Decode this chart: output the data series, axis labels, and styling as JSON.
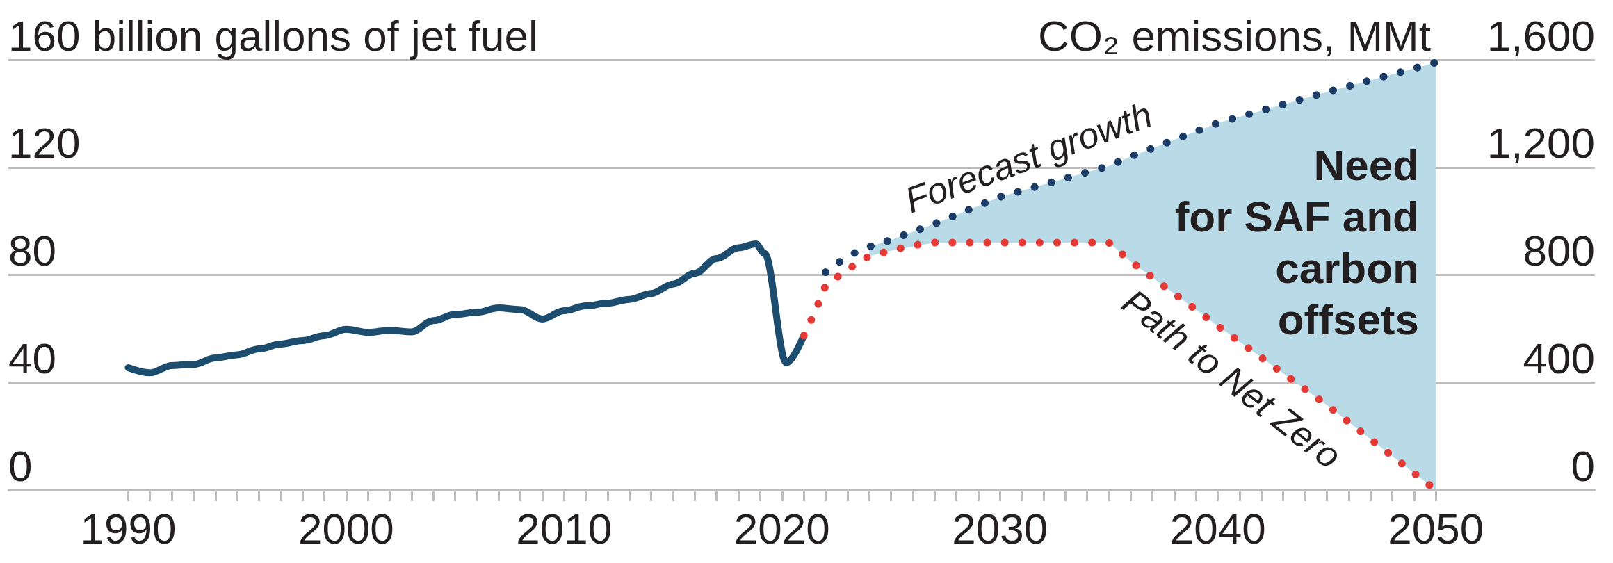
{
  "chart_data": {
    "type": "line",
    "annotations": [
      "Need\nfor SAF and\ncarbon\noffsets"
    ],
    "series": [
      {
        "color": "#1d4d6e",
        "line_style": "solid",
        "x": [
          1990,
          1991,
          1992,
          1993,
          1994,
          1995,
          1996,
          1997,
          1998,
          1999,
          2000,
          2001,
          2002,
          2003,
          2004,
          2005,
          2006,
          2007,
          2008,
          2009,
          2010,
          2011,
          2012,
          2013,
          2014,
          2015,
          2016,
          2017,
          2018,
          2018.8,
          2019.2,
          2020.2,
          2021
        ],
        "values": [
          45.5,
          43.6,
          46.3,
          46.7,
          49.1,
          50.3,
          52.5,
          54.3,
          55.6,
          57.4,
          59.8,
          58.6,
          59.4,
          58.8,
          63.0,
          65.3,
          66.1,
          67.7,
          67.1,
          63.6,
          66.7,
          68.5,
          69.5,
          70.9,
          73.1,
          76.6,
          80.6,
          86.1,
          90.1,
          91.5,
          88,
          47.3,
          57.4
        ]
      },
      {
        "name": "Forecast growth",
        "color": "#1a3c66",
        "line_style": "dotted",
        "x": [
          2022,
          2023,
          2024,
          2025,
          2027,
          2030,
          2035,
          2036,
          2040,
          2045,
          2050
        ],
        "values": [
          81,
          87,
          90.5,
          93,
          99,
          109,
          120.5,
          124,
          136.5,
          148,
          159
        ],
        "lower": [
          null,
          null,
          87,
          89,
          92,
          92,
          92,
          85,
          61,
          31.6,
          0
        ],
        "upper": [
          null,
          null,
          90.5,
          93,
          99,
          109,
          120.5,
          124,
          136.5,
          148,
          159
        ]
      },
      {
        "name": "Path to Net Zero",
        "color": "#e53935",
        "line_style": "dotted",
        "x": [
          2021,
          2021.5,
          2022,
          2023,
          2024,
          2025,
          2026,
          2027,
          2035,
          2036,
          2040,
          2045,
          2050
        ],
        "values": [
          57.4,
          66,
          76,
          82,
          87,
          89,
          91,
          92,
          92,
          85,
          61,
          31.6,
          0
        ]
      }
    ],
    "xlim": [
      1984.5,
      2057.3
    ],
    "xticks": [
      1990,
      {
        "value": 1991,
        "label": null
      },
      {
        "value": 1992,
        "label": null
      },
      {
        "value": 1993,
        "label": null
      },
      {
        "value": 1994,
        "label": null
      },
      {
        "value": 1995,
        "label": null
      },
      {
        "value": 1996,
        "label": null
      },
      {
        "value": 1997,
        "label": null
      },
      {
        "value": 1998,
        "label": null
      },
      {
        "value": 1999,
        "label": null
      },
      2000,
      {
        "value": 2001,
        "label": null
      },
      {
        "value": 2002,
        "label": null
      },
      {
        "value": 2003,
        "label": null
      },
      {
        "value": 2004,
        "label": null
      },
      {
        "value": 2005,
        "label": null
      },
      {
        "value": 2006,
        "label": null
      },
      {
        "value": 2007,
        "label": null
      },
      {
        "value": 2008,
        "label": null
      },
      {
        "value": 2009,
        "label": null
      },
      2010,
      {
        "value": 2011,
        "label": null
      },
      {
        "value": 2012,
        "label": null
      },
      {
        "value": 2013,
        "label": null
      },
      {
        "value": 2014,
        "label": null
      },
      {
        "value": 2015,
        "label": null
      },
      {
        "value": 2016,
        "label": null
      },
      {
        "value": 2017,
        "label": null
      },
      {
        "value": 2018,
        "label": null
      },
      {
        "value": 2019,
        "label": null
      },
      2020,
      {
        "value": 2021,
        "label": null
      },
      {
        "value": 2022,
        "label": null
      },
      {
        "value": 2023,
        "label": null
      },
      {
        "value": 2024,
        "label": null
      },
      {
        "value": 2025,
        "label": null
      },
      {
        "value": 2026,
        "label": null
      },
      {
        "value": 2027,
        "label": null
      },
      {
        "value": 2028,
        "label": null
      },
      {
        "value": 2029,
        "label": null
      },
      2030,
      {
        "value": 2031,
        "label": null
      },
      {
        "value": 2032,
        "label": null
      },
      {
        "value": 2033,
        "label": null
      },
      {
        "value": 2034,
        "label": null
      },
      {
        "value": 2035,
        "label": null
      },
      {
        "value": 2036,
        "label": null
      },
      {
        "value": 2037,
        "label": null
      },
      {
        "value": 2038,
        "label": null
      },
      {
        "value": 2039,
        "label": null
      },
      2040,
      {
        "value": 2041,
        "label": null
      },
      {
        "value": 2042,
        "label": null
      },
      {
        "value": 2043,
        "label": null
      },
      {
        "value": 2044,
        "label": null
      },
      {
        "value": 2045,
        "label": null
      },
      {
        "value": 2046,
        "label": null
      },
      {
        "value": 2047,
        "label": null
      },
      {
        "value": 2048,
        "label": null
      },
      {
        "value": 2049,
        "label": null
      },
      2050
    ],
    "ylim": [
      0,
      160
    ],
    "yticks": [
      0,
      40,
      80,
      120,
      {
        "value": 160,
        "label": "160 billion gallons of jet fuel"
      }
    ],
    "y2label": "CO₂ emissions, MMt",
    "y2lim": [
      0,
      1600
    ],
    "y2ticks": [
      0,
      400,
      800,
      {
        "value": 1200,
        "label": "1,200"
      },
      {
        "value": 1600,
        "label": "1,600"
      }
    ],
    "grid": "y"
  }
}
